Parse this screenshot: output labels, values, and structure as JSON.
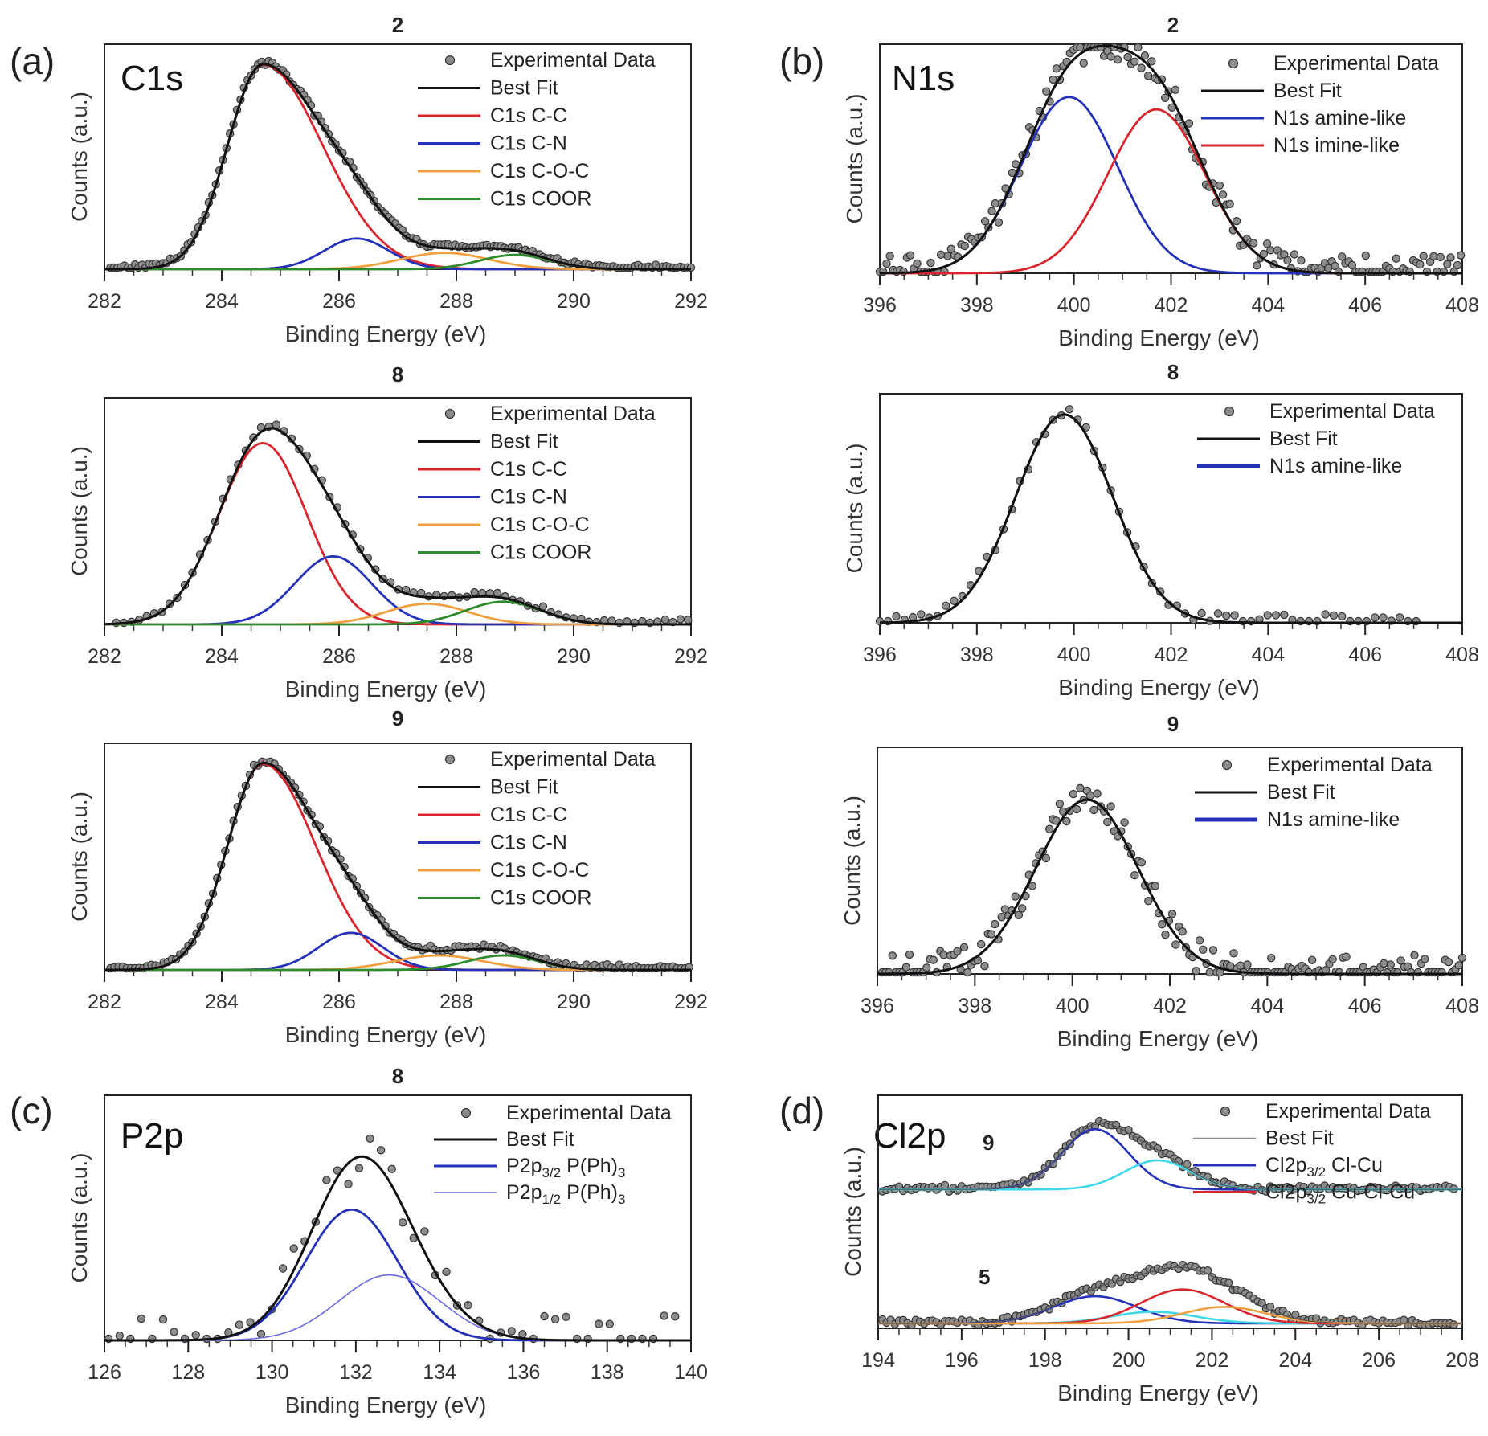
{
  "figure": {
    "colors": {
      "data_point_fill": "#8c8c8c",
      "data_point_stroke": "#333333",
      "best_fit": "#111111",
      "cc": "#d9262e",
      "cn": "#2431b8",
      "coc": "#f0a040",
      "coor": "#2e8b2e",
      "amine": "#2431b8",
      "imine": "#d9262e",
      "p2p_half": "#6a6ae0",
      "cl_cu": "#2431b8",
      "cu_cl_cu": "#d9262e",
      "cyan": "#40d8e8"
    }
  },
  "chart_data": [
    {
      "id": "a2",
      "type": "scatter",
      "panel_letter": "(a)",
      "element": "C1s",
      "sample": "2",
      "title": "2",
      "xlabel": "Binding Energy (eV)",
      "ylabel": "Counts (a.u.)",
      "xlim": [
        282,
        292
      ],
      "ylim": [
        0,
        1.1
      ],
      "xticks": [
        282,
        284,
        286,
        288,
        290,
        292
      ],
      "legend_position": "top-right",
      "legend": [
        "Experimental Data",
        "Best Fit",
        "C1s C-C",
        "C1s C-N",
        "C1s C-O-C",
        "C1s COOR"
      ],
      "components": [
        {
          "name": "C1s C-C",
          "center": 284.7,
          "amplitude": 1.0,
          "width": 0.6,
          "tail": 1.7,
          "color_key": "cc"
        },
        {
          "name": "C1s C-N",
          "center": 286.3,
          "amplitude": 0.15,
          "width": 0.55,
          "color_key": "cn"
        },
        {
          "name": "C1s C-O-C",
          "center": 287.8,
          "amplitude": 0.08,
          "width": 0.75,
          "color_key": "coc"
        },
        {
          "name": "C1s COOR",
          "center": 289.0,
          "amplitude": 0.07,
          "width": 0.6,
          "color_key": "coor"
        }
      ],
      "points": {
        "x_start": 282.1,
        "x_end": 292,
        "step": 0.06,
        "noise": 0.01
      }
    },
    {
      "id": "a8",
      "type": "scatter",
      "element": "",
      "sample": "8",
      "title": "8",
      "xlabel": "Binding Energy (eV)",
      "ylabel": "Counts (a.u.)",
      "xlim": [
        282,
        292
      ],
      "ylim": [
        0,
        1.1
      ],
      "xticks": [
        282,
        284,
        286,
        288,
        290,
        292
      ],
      "legend_position": "top-right",
      "legend": [
        "Experimental Data",
        "Best Fit",
        "C1s C-C",
        "C1s C-N",
        "C1s C-O-C",
        "C1s COOR"
      ],
      "components": [
        {
          "name": "C1s C-C",
          "center": 284.7,
          "amplitude": 0.88,
          "width": 0.75,
          "color_key": "cc"
        },
        {
          "name": "C1s C-N",
          "center": 285.9,
          "amplitude": 0.33,
          "width": 0.65,
          "color_key": "cn"
        },
        {
          "name": "C1s C-O-C",
          "center": 287.5,
          "amplitude": 0.1,
          "width": 0.7,
          "color_key": "coc"
        },
        {
          "name": "C1s COOR",
          "center": 288.8,
          "amplitude": 0.11,
          "width": 0.65,
          "color_key": "coor"
        }
      ],
      "points": {
        "x_start": 282.2,
        "x_end": 292,
        "step": 0.13,
        "noise": 0.012
      }
    },
    {
      "id": "a9",
      "type": "scatter",
      "element": "",
      "sample": "9",
      "title": "9",
      "xlabel": "Binding Energy (eV)",
      "ylabel": "Counts (a.u.)",
      "xlim": [
        282,
        292
      ],
      "ylim": [
        0,
        1.1
      ],
      "xticks": [
        282,
        284,
        286,
        288,
        290,
        292
      ],
      "legend_position": "top-right",
      "legend": [
        "Experimental Data",
        "Best Fit",
        "C1s C-C",
        "C1s C-N",
        "C1s C-O-C",
        "C1s COOR"
      ],
      "components": [
        {
          "name": "C1s C-C",
          "center": 284.7,
          "amplitude": 1.0,
          "width": 0.6,
          "tail": 1.5,
          "color_key": "cc"
        },
        {
          "name": "C1s C-N",
          "center": 286.2,
          "amplitude": 0.18,
          "width": 0.55,
          "color_key": "cn"
        },
        {
          "name": "C1s C-O-C",
          "center": 287.7,
          "amplitude": 0.07,
          "width": 0.75,
          "color_key": "coc"
        },
        {
          "name": "C1s COOR",
          "center": 288.8,
          "amplitude": 0.07,
          "width": 0.6,
          "color_key": "coor"
        }
      ],
      "points": {
        "x_start": 282.1,
        "x_end": 292,
        "step": 0.07,
        "noise": 0.012
      }
    },
    {
      "id": "b2",
      "type": "scatter",
      "panel_letter": "(b)",
      "element": "N1s",
      "sample": "2",
      "title": "2",
      "xlabel": "Binding Energy (eV)",
      "ylabel": "Counts (a.u.)",
      "xlim": [
        396,
        408
      ],
      "ylim": [
        0,
        1.3
      ],
      "xticks": [
        396,
        398,
        400,
        402,
        404,
        406,
        408
      ],
      "legend_position": "top-right",
      "legend": [
        "Experimental Data",
        "Best Fit",
        "N1s amine-like",
        "N1s imine-like"
      ],
      "components": [
        {
          "name": "N1s amine-like",
          "center": 399.9,
          "amplitude": 1.0,
          "width": 1.0,
          "color_key": "amine"
        },
        {
          "name": "N1s imine-like",
          "center": 401.7,
          "amplitude": 0.93,
          "width": 1.0,
          "color_key": "imine"
        }
      ],
      "points": {
        "x_start": 396,
        "x_end": 408,
        "step": 0.07,
        "noise": 0.09
      }
    },
    {
      "id": "b8",
      "type": "scatter",
      "element": "",
      "sample": "8",
      "title": "8",
      "xlabel": "Binding Energy (eV)",
      "ylabel": "Counts (a.u.)",
      "xlim": [
        396,
        408
      ],
      "ylim": [
        0,
        1.1
      ],
      "xticks": [
        396,
        398,
        400,
        402,
        404,
        406,
        408
      ],
      "legend_position": "top-right",
      "legend": [
        "Experimental Data",
        "Best Fit",
        "N1s amine-like"
      ],
      "components": [
        {
          "name": "N1s amine-like",
          "center": 399.8,
          "amplitude": 1.0,
          "width": 1.0,
          "color_key": "amine"
        }
      ],
      "points": {
        "x_start": 396,
        "x_end": 407.2,
        "step": 0.17,
        "noise": 0.03
      }
    },
    {
      "id": "b9",
      "type": "scatter",
      "element": "",
      "sample": "9",
      "title": "9",
      "xlabel": "Binding Energy (eV)",
      "ylabel": "Counts (a.u.)",
      "xlim": [
        396,
        408
      ],
      "ylim": [
        0,
        1.3
      ],
      "xticks": [
        396,
        398,
        400,
        402,
        404,
        406,
        408
      ],
      "legend_position": "top-right",
      "legend": [
        "Experimental Data",
        "Best Fit",
        "N1s amine-like"
      ],
      "components": [
        {
          "name": "N1s amine-like",
          "center": 400.3,
          "amplitude": 1.0,
          "width": 1.05,
          "color_key": "amine"
        }
      ],
      "points": {
        "x_start": 396.1,
        "x_end": 408,
        "step": 0.07,
        "noise": 0.1
      }
    },
    {
      "id": "c8",
      "type": "scatter",
      "panel_letter": "(c)",
      "element": "P2p",
      "sample": "8",
      "title": "8",
      "xlabel": "Binding Energy (eV)",
      "ylabel": "Counts (a.u.)",
      "xlim": [
        126,
        140
      ],
      "ylim": [
        0,
        1.35
      ],
      "xticks": [
        126,
        128,
        130,
        132,
        134,
        136,
        138,
        140
      ],
      "legend_position": "top-right",
      "legend": [
        {
          "base": "Experimental Data"
        },
        {
          "base": "Best Fit"
        },
        {
          "base": "P2p",
          "sub": "3/2",
          "rest": " P(Ph)",
          "sub2": "3"
        },
        {
          "base": "P2p",
          "sub": "1/2",
          "rest": " P(Ph)",
          "sub2": "3"
        }
      ],
      "components": [
        {
          "name": "P2p3/2 P(Ph)3",
          "center": 131.9,
          "amplitude": 0.72,
          "width": 1.1,
          "color_key": "cn"
        },
        {
          "name": "P2p1/2 P(Ph)3",
          "center": 132.8,
          "amplitude": 0.36,
          "width": 1.2,
          "color_key": "p2p_half"
        }
      ],
      "points": {
        "x_start": 126.1,
        "x_end": 139.8,
        "step": 0.26,
        "noise": 0.13
      }
    },
    {
      "id": "d",
      "type": "scatter",
      "panel_letter": "(d)",
      "element": "Cl2p",
      "samples": [
        "9",
        "5"
      ],
      "xlabel": "Binding Energy (eV)",
      "ylabel": "Counts (a.u.)",
      "xlim": [
        194,
        208
      ],
      "ylim": [
        0,
        2.4
      ],
      "xticks": [
        194,
        196,
        198,
        200,
        202,
        204,
        206,
        208
      ],
      "legend_position": "top-right",
      "legend": [
        {
          "base": "Experimental Data"
        },
        {
          "base": "Best Fit"
        },
        {
          "base": "Cl2p",
          "sub": "3/2",
          "rest": " Cl-Cu"
        },
        {
          "base": "Cl2p",
          "sub": "3/2",
          "rest": " Cu-Cl-Cu"
        }
      ],
      "traces": [
        {
          "sample": "9",
          "offset": 1.38,
          "components": [
            {
              "name": "Cl2p3/2 Cl-Cu",
              "center": 199.2,
              "amplitude": 0.62,
              "width": 0.8,
              "color_key": "cl_cu"
            },
            {
              "name": "Cl2p1/2 Cl-Cu",
              "center": 200.7,
              "amplitude": 0.3,
              "width": 0.8,
              "color_key": "cyan"
            }
          ]
        },
        {
          "sample": "5",
          "offset": 0.0,
          "components": [
            {
              "name": "Cl2p3/2 Cl-Cu",
              "center": 199.2,
              "amplitude": 0.28,
              "width": 1.0,
              "color_key": "cl_cu"
            },
            {
              "name": "Cl2p1/2 Cl-Cu",
              "center": 200.6,
              "amplitude": 0.12,
              "width": 1.0,
              "color_key": "cyan"
            },
            {
              "name": "Cl2p3/2 Cu-Cl-Cu",
              "center": 201.3,
              "amplitude": 0.35,
              "width": 1.0,
              "color_key": "cu_cl_cu"
            },
            {
              "name": "Cl2p1/2 Cu-Cl-Cu",
              "center": 202.3,
              "amplitude": 0.17,
              "width": 1.0,
              "color_key": "coc"
            }
          ]
        }
      ],
      "points": {
        "x_start": 194.1,
        "x_end": 207.8,
        "step": 0.1,
        "noise": 0.03
      }
    }
  ]
}
